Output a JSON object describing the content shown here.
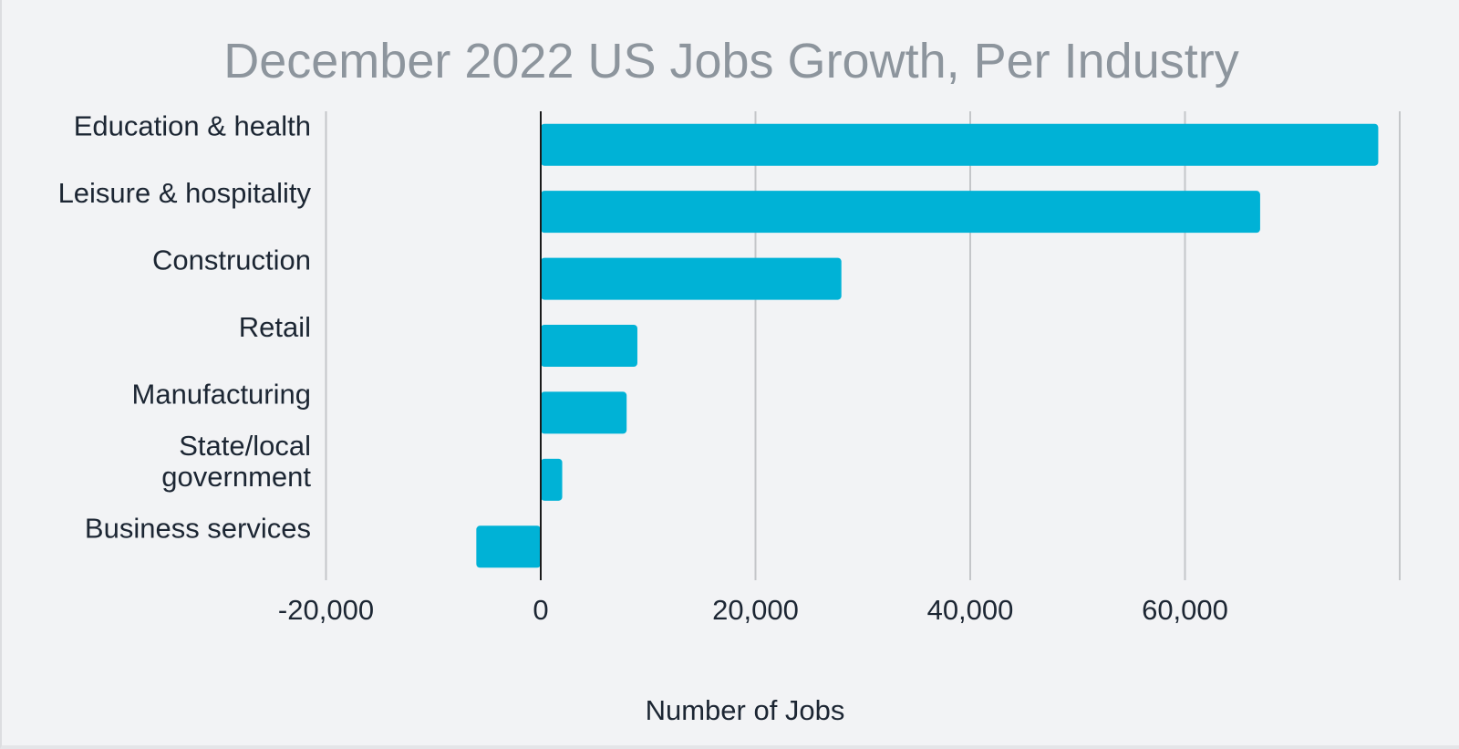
{
  "chart_data": {
    "type": "bar",
    "orientation": "horizontal",
    "title": "December 2022 US Jobs Growth, Per Industry",
    "xlabel": "Number of Jobs",
    "ylabel": "",
    "categories": [
      [
        "Education & health"
      ],
      [
        "Leisure & hospitality"
      ],
      [
        "Construction"
      ],
      [
        "Retail"
      ],
      [
        "Manufacturing"
      ],
      [
        "State/local",
        "government"
      ],
      [
        "Business services"
      ]
    ],
    "values": [
      78000,
      67000,
      28000,
      9000,
      8000,
      2000,
      -6000
    ],
    "xlim": [
      -20000,
      80000
    ],
    "xticks": [
      -20000,
      0,
      20000,
      40000,
      60000
    ],
    "xtick_labels": [
      "-20,000",
      "0",
      "20,000",
      "40,000",
      "60,000"
    ],
    "grid": true,
    "legend": "none",
    "colors": {
      "bar": "#00b2d6",
      "grid": "#c4c6c9",
      "zero_line": "#1a1a1a",
      "title": "#8d959d",
      "text": "#1c2633",
      "background": "#f2f3f5"
    }
  }
}
